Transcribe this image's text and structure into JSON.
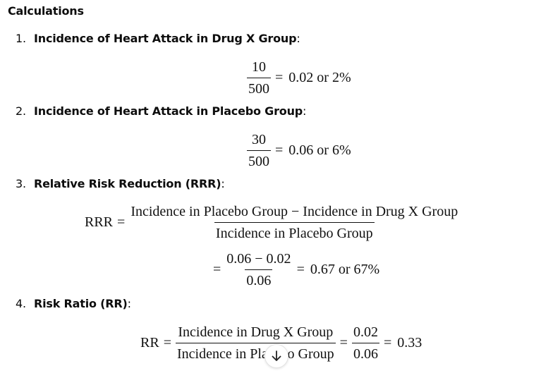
{
  "heading": "Calculations",
  "items": [
    {
      "num": "1.",
      "title": "Incidence of Heart Attack in Drug X Group",
      "colon": ":"
    },
    {
      "num": "2.",
      "title": "Incidence of Heart Attack in Placebo Group",
      "colon": ":"
    },
    {
      "num": "3.",
      "title": "Relative Risk Reduction (RRR)",
      "colon": ":"
    },
    {
      "num": "4.",
      "title": "Risk Ratio (RR)",
      "colon": ":"
    }
  ],
  "eq1": {
    "numerator": "10",
    "denominator": "500",
    "equals": "=",
    "result": "0.02 or 2%"
  },
  "eq2": {
    "numerator": "30",
    "denominator": "500",
    "equals": "=",
    "result": "0.06 or 6%"
  },
  "eq3": {
    "lhs": "RRR",
    "equals": "=",
    "numerator": "Incidence in Placebo Group − Incidence in Drug X Group",
    "denominator": "Incidence in Placebo Group"
  },
  "eq4": {
    "equals": "=",
    "numerator": "0.06 − 0.02",
    "denominator": "0.06",
    "equals2": "=",
    "result": "0.67 or 67%"
  },
  "eq5": {
    "lhs": "RR",
    "equals": "=",
    "numerator": "Incidence in Drug X Group",
    "denominator": "Incidence in Placebo Group",
    "equals2": "=",
    "numerator2": "0.02",
    "denominator2": "0.06",
    "equals3": "=",
    "result": "0.33"
  },
  "scroll_button": {
    "icon": "arrow-down-icon",
    "glyph": "↓"
  }
}
